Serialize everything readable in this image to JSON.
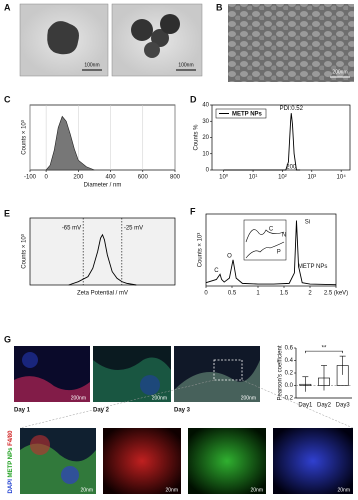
{
  "panel_labels": [
    "A",
    "B",
    "C",
    "D",
    "E",
    "F",
    "G"
  ],
  "images": {
    "a_scale_bars": [
      "100nm",
      "100nm"
    ],
    "b_scale_bar": "200nm",
    "g_days": [
      "Day 1",
      "Day 2",
      "Day 3"
    ],
    "g_scale_bars": [
      "200nm",
      "200nm",
      "200nm"
    ],
    "g_zoom_scale_bars": [
      "20nm",
      "20nm",
      "20nm",
      "20nm"
    ],
    "g_stain_labels": [
      "DAPI",
      "METP NPs",
      "F4/80"
    ]
  },
  "chart_data": [
    {
      "type": "area",
      "xlabel": "Diameter / nm",
      "ylabel": "Counts × 10³",
      "color": "#777777",
      "x": [
        0,
        25,
        50,
        75,
        100,
        125,
        150,
        175,
        200,
        250,
        300
      ],
      "series": [
        {
          "values": [
            0,
            3,
            12,
            26,
            33,
            30,
            22,
            13,
            6,
            2,
            0
          ]
        }
      ],
      "xlim": [
        -100,
        800
      ],
      "ylim": [
        0,
        40
      ],
      "xticks": [
        -100,
        0,
        200,
        400,
        600,
        800
      ],
      "grid": "x"
    },
    {
      "type": "line",
      "xscale": "log",
      "ylabel": "Counts %",
      "color": "#000000",
      "legend": "upper left",
      "x": [
        1,
        10,
        100,
        130,
        160,
        190,
        200,
        220,
        250,
        300,
        400
      ],
      "series": [
        {
          "name": "METP NPs",
          "values": [
            0,
            0,
            0,
            0,
            5,
            30,
            35,
            28,
            10,
            0,
            0
          ]
        }
      ],
      "xlim": [
        0.4,
        20000
      ],
      "ylim": [
        0,
        40
      ],
      "xticks": [
        {
          "value": 1,
          "label": "10⁰"
        },
        {
          "value": 10,
          "label": "10¹"
        },
        {
          "value": 100,
          "label": "10²"
        },
        {
          "value": 1000,
          "label": "10³"
        },
        {
          "value": 10000,
          "label": "10⁴"
        }
      ],
      "yticks": [
        0,
        10,
        20,
        30,
        40
      ],
      "annotations": [
        {
          "x": 200,
          "y": 38,
          "label": "PDI:0.52"
        },
        {
          "x": 200,
          "y": 2,
          "label": "200"
        }
      ]
    },
    {
      "type": "line",
      "xlabel": "Zeta Potential / mV",
      "ylabel": "Counts × 10³",
      "color": "#000000",
      "x": [
        -80,
        -70,
        -60,
        -55,
        -50,
        -47,
        -45,
        -43,
        -40,
        -35,
        -30,
        -25,
        -20,
        -10
      ],
      "series": [
        {
          "values": [
            0,
            2,
            5,
            10,
            20,
            28,
            30,
            27,
            18,
            8,
            4,
            2,
            1,
            0
          ]
        }
      ],
      "xlim": [
        -120,
        30
      ],
      "ylim": [
        0,
        40
      ],
      "vlines": [
        {
          "x": -65,
          "label": "-65 mV"
        },
        {
          "x": -25,
          "label": "-25 mV"
        }
      ]
    },
    {
      "type": "line",
      "ylabel": "Counts × 10³",
      "color": "#000000",
      "x": [
        0,
        0.2,
        0.27,
        0.3,
        0.35,
        0.45,
        0.52,
        0.58,
        0.7,
        1.0,
        1.3,
        1.6,
        1.7,
        1.74,
        1.78,
        1.85,
        2.0,
        2.5
      ],
      "series": [
        {
          "values": [
            5,
            10,
            18,
            10,
            6,
            12,
            40,
            12,
            4,
            3,
            3,
            4,
            20,
            100,
            30,
            5,
            3,
            2
          ]
        }
      ],
      "xlim": [
        0,
        2.5
      ],
      "ylim": [
        0,
        110
      ],
      "xticks": [
        0,
        0.5,
        1,
        1.5,
        2,
        {
          "value": 2.5,
          "label": "2.5 (keV)"
        }
      ],
      "annotations": [
        {
          "x": 0.2,
          "y": 24,
          "label": "C"
        },
        {
          "x": 0.45,
          "y": 46,
          "label": "O"
        },
        {
          "x": 1.95,
          "y": 98,
          "label": "Si"
        },
        {
          "x": 2.05,
          "y": 30,
          "label": "METP NPs"
        },
        {
          "x": 1.25,
          "y": 87,
          "label": "C"
        },
        {
          "x": 1.5,
          "y": 78,
          "label": "N"
        },
        {
          "x": 1.4,
          "y": 52,
          "label": "P"
        }
      ]
    },
    {
      "type": "bar",
      "ylabel": "Pearson's coefficient",
      "color": "#ffffff",
      "categories": [
        "Day1",
        "Day2",
        "Day3"
      ],
      "values": [
        0.02,
        0.12,
        0.32
      ],
      "errors": [
        0.12,
        0.2,
        0.15
      ],
      "ylim": [
        -0.2,
        0.6
      ],
      "yticks": [
        -0.2,
        {
          "value": 0,
          "label": "0.0"
        },
        0.2,
        0.4,
        0.6
      ],
      "annotations": [
        {
          "y": 0.55,
          "label": "**"
        }
      ]
    }
  ]
}
